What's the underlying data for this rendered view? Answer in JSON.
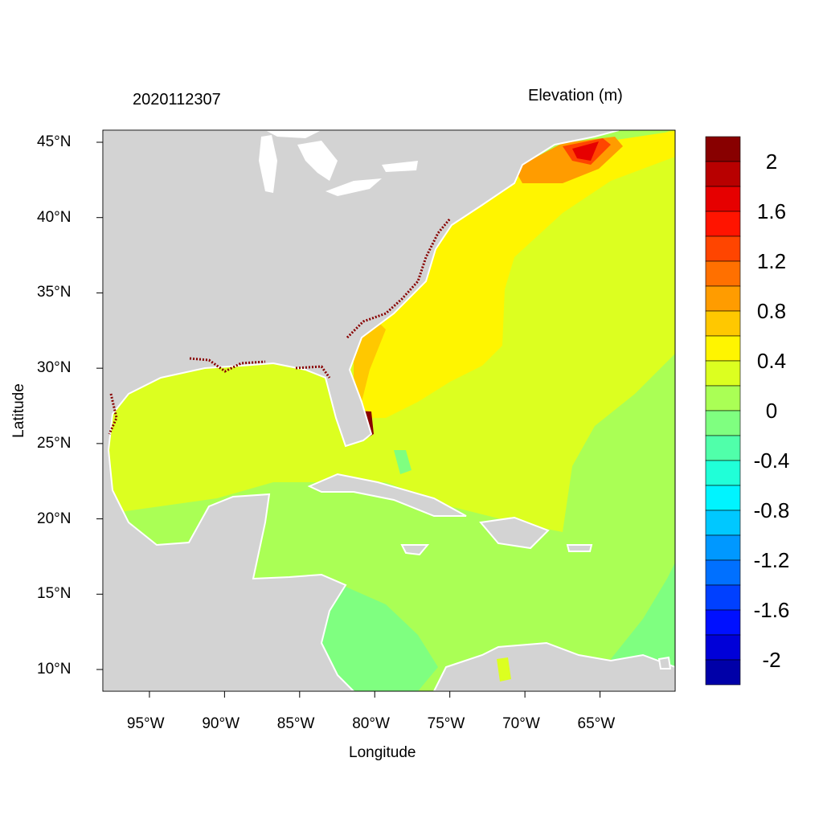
{
  "plot": {
    "left_title": "2020112307",
    "right_title": "Elevation (m)",
    "xlabel": "Longitude",
    "ylabel": "Latitude",
    "lon_range": [
      -98.1,
      -60
    ],
    "lat_range": [
      8.56,
      45.8
    ],
    "lat_ticks": [
      {
        "value": 45,
        "label": "45°N"
      },
      {
        "value": 40,
        "label": "40°N"
      },
      {
        "value": 35,
        "label": "35°N"
      },
      {
        "value": 30,
        "label": "30°N"
      },
      {
        "value": 25,
        "label": "25°N"
      },
      {
        "value": 20,
        "label": "20°N"
      },
      {
        "value": 15,
        "label": "15°N"
      },
      {
        "value": 10,
        "label": "10°N"
      }
    ],
    "lon_ticks": [
      {
        "value": -95,
        "label": "95°W"
      },
      {
        "value": -90,
        "label": "90°W"
      },
      {
        "value": -85,
        "label": "85°W"
      },
      {
        "value": -80,
        "label": "80°W"
      },
      {
        "value": -75,
        "label": "75°W"
      },
      {
        "value": -70,
        "label": "70°W"
      },
      {
        "value": -65,
        "label": "65°W"
      }
    ],
    "land_color": "#d3d3d3"
  },
  "colorbar": {
    "colors": [
      "#880000",
      "#b80000",
      "#e60000",
      "#ff1400",
      "#ff4500",
      "#ff7000",
      "#ff9c00",
      "#ffc800",
      "#fff500",
      "#dcff20",
      "#aaff55",
      "#7fff80",
      "#50ffaa",
      "#20ffd8",
      "#00f4ff",
      "#00c8ff",
      "#0098ff",
      "#0070ff",
      "#0040ff",
      "#0010ff",
      "#0000d8",
      "#0000a8"
    ],
    "labels": [
      "2",
      "1.6",
      "1.2",
      "0.8",
      "0.4",
      "0",
      "-0.4",
      "-0.8",
      "-1.2",
      "-1.6",
      "-2"
    ]
  }
}
